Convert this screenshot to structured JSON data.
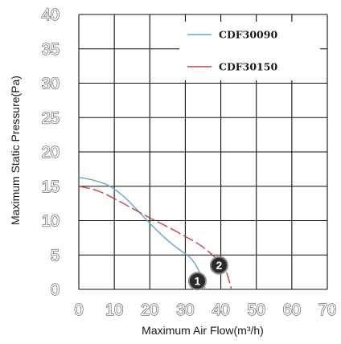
{
  "chart_data": {
    "type": "line",
    "xlabel": "Maximum Air Flow(m³/h)",
    "ylabel": "Maximum Static Pressure(Pa)",
    "xlim": [
      0,
      70
    ],
    "ylim": [
      0,
      40
    ],
    "x_ticks": [
      "0",
      "10",
      "20",
      "30",
      "40",
      "50",
      "60",
      "70"
    ],
    "y_ticks": [
      "0",
      "5",
      "10",
      "15",
      "20",
      "25",
      "30",
      "35",
      "40"
    ],
    "grid": true,
    "legend_position": "top-right",
    "series": [
      {
        "name": "CDF30090",
        "color": "#5fa8c8",
        "dash": "solid",
        "points": [
          [
            0,
            16.3
          ],
          [
            4,
            15.9
          ],
          [
            8,
            15.2
          ],
          [
            12,
            13.8
          ],
          [
            16,
            11.8
          ],
          [
            20,
            9.6
          ],
          [
            24,
            7.6
          ],
          [
            28,
            5.9
          ],
          [
            31,
            4.8
          ],
          [
            33,
            3.5
          ],
          [
            34.8,
            1.5
          ],
          [
            35.6,
            0
          ]
        ]
      },
      {
        "name": "CDF30150",
        "color": "#c9404a",
        "dash": "dashed",
        "points": [
          [
            0,
            15
          ],
          [
            5,
            14.4
          ],
          [
            10,
            13.2
          ],
          [
            15,
            11.8
          ],
          [
            20,
            10.4
          ],
          [
            25,
            9.1
          ],
          [
            30,
            7.7
          ],
          [
            34,
            6.5
          ],
          [
            37,
            5.3
          ],
          [
            39.5,
            4
          ],
          [
            41.5,
            2.6
          ],
          [
            43,
            0
          ]
        ]
      }
    ],
    "markers": [
      {
        "label": "1",
        "x": 33.4,
        "y": 1.2
      },
      {
        "label": "2",
        "x": 39.5,
        "y": 3.5
      }
    ]
  }
}
